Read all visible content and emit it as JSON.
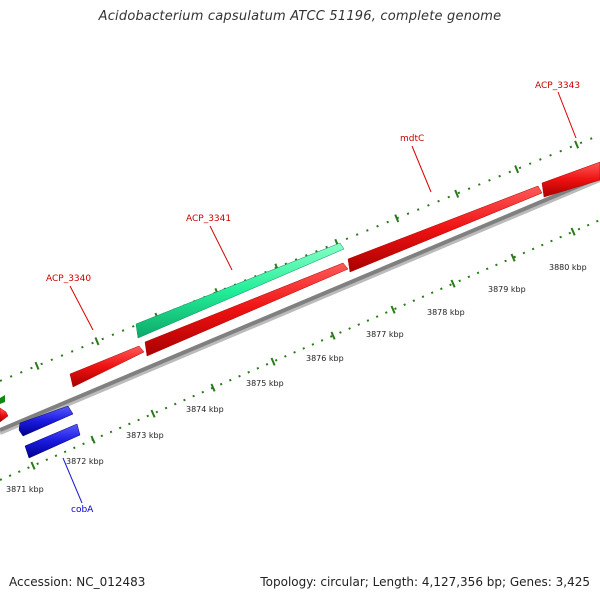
{
  "title": "Acidobacterium capsulatum ATCC 51196, complete genome",
  "footer": {
    "accession": "Accession: NC_012483",
    "summary": "Topology: circular; Length: 4,127,356 bp; Genes: 3,425"
  },
  "colors": {
    "forward_gene": "#ee1111",
    "reverse_gene": "#1a1ae0",
    "rna_gene": "#22ee99",
    "backbone": "#808080",
    "tick": "#2a7a1a",
    "label_forward": "#cc0000",
    "label_reverse": "#0000cc"
  },
  "ticks": {
    "unit": "kbp",
    "labels": [
      {
        "text": "3871 kbp"
      },
      {
        "text": "3872 kbp"
      },
      {
        "text": "3873 kbp"
      },
      {
        "text": "3874 kbp"
      },
      {
        "text": "3875 kbp"
      },
      {
        "text": "3876 kbp"
      },
      {
        "text": "3877 kbp"
      },
      {
        "text": "3878 kbp"
      },
      {
        "text": "3879 kbp"
      },
      {
        "text": "3880 kbp"
      }
    ]
  },
  "genes": [
    {
      "name": "ACP_3340",
      "strand": "forward",
      "type": "CDS"
    },
    {
      "name": "ACP_3341",
      "strand": "forward",
      "type": "RNA"
    },
    {
      "name": "mdtC",
      "strand": "forward",
      "type": "CDS"
    },
    {
      "name": "ACP_3343",
      "strand": "forward",
      "type": "CDS"
    },
    {
      "name": "cobA",
      "strand": "reverse",
      "type": "CDS"
    }
  ]
}
